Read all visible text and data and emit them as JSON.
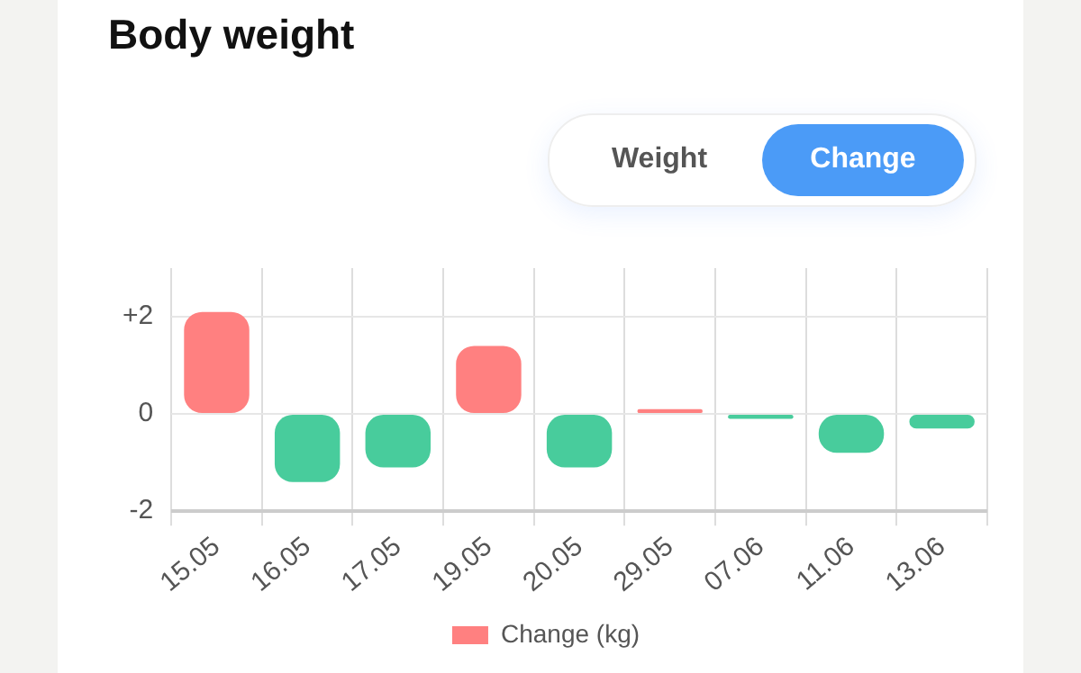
{
  "chart_data": {
    "type": "bar",
    "title": "Body weight",
    "annotations": [
      "Weight",
      "Change"
    ],
    "categories": [
      "15.05",
      "16.05",
      "17.05",
      "19.05",
      "20.05",
      "29.05",
      "07.06",
      "11.06",
      "13.06"
    ],
    "series": [
      {
        "name": "Change (kg)",
        "color": "#ff8080",
        "colors": [
          "#ff8080",
          "#48cc9c",
          "#48cc9c",
          "#ff8080",
          "#48cc9c",
          "#ff8080",
          "#48cc9c",
          "#48cc9c",
          "#48cc9c"
        ],
        "values": [
          2.1,
          -1.4,
          -1.1,
          1.4,
          -1.1,
          0.1,
          -0.1,
          -0.8,
          -0.3
        ]
      }
    ],
    "ylim": [
      -2,
      3
    ],
    "yticks": [
      -2,
      0,
      {
        "value": 2,
        "label": "+2"
      }
    ],
    "grid": true,
    "legend": "bottom"
  }
}
